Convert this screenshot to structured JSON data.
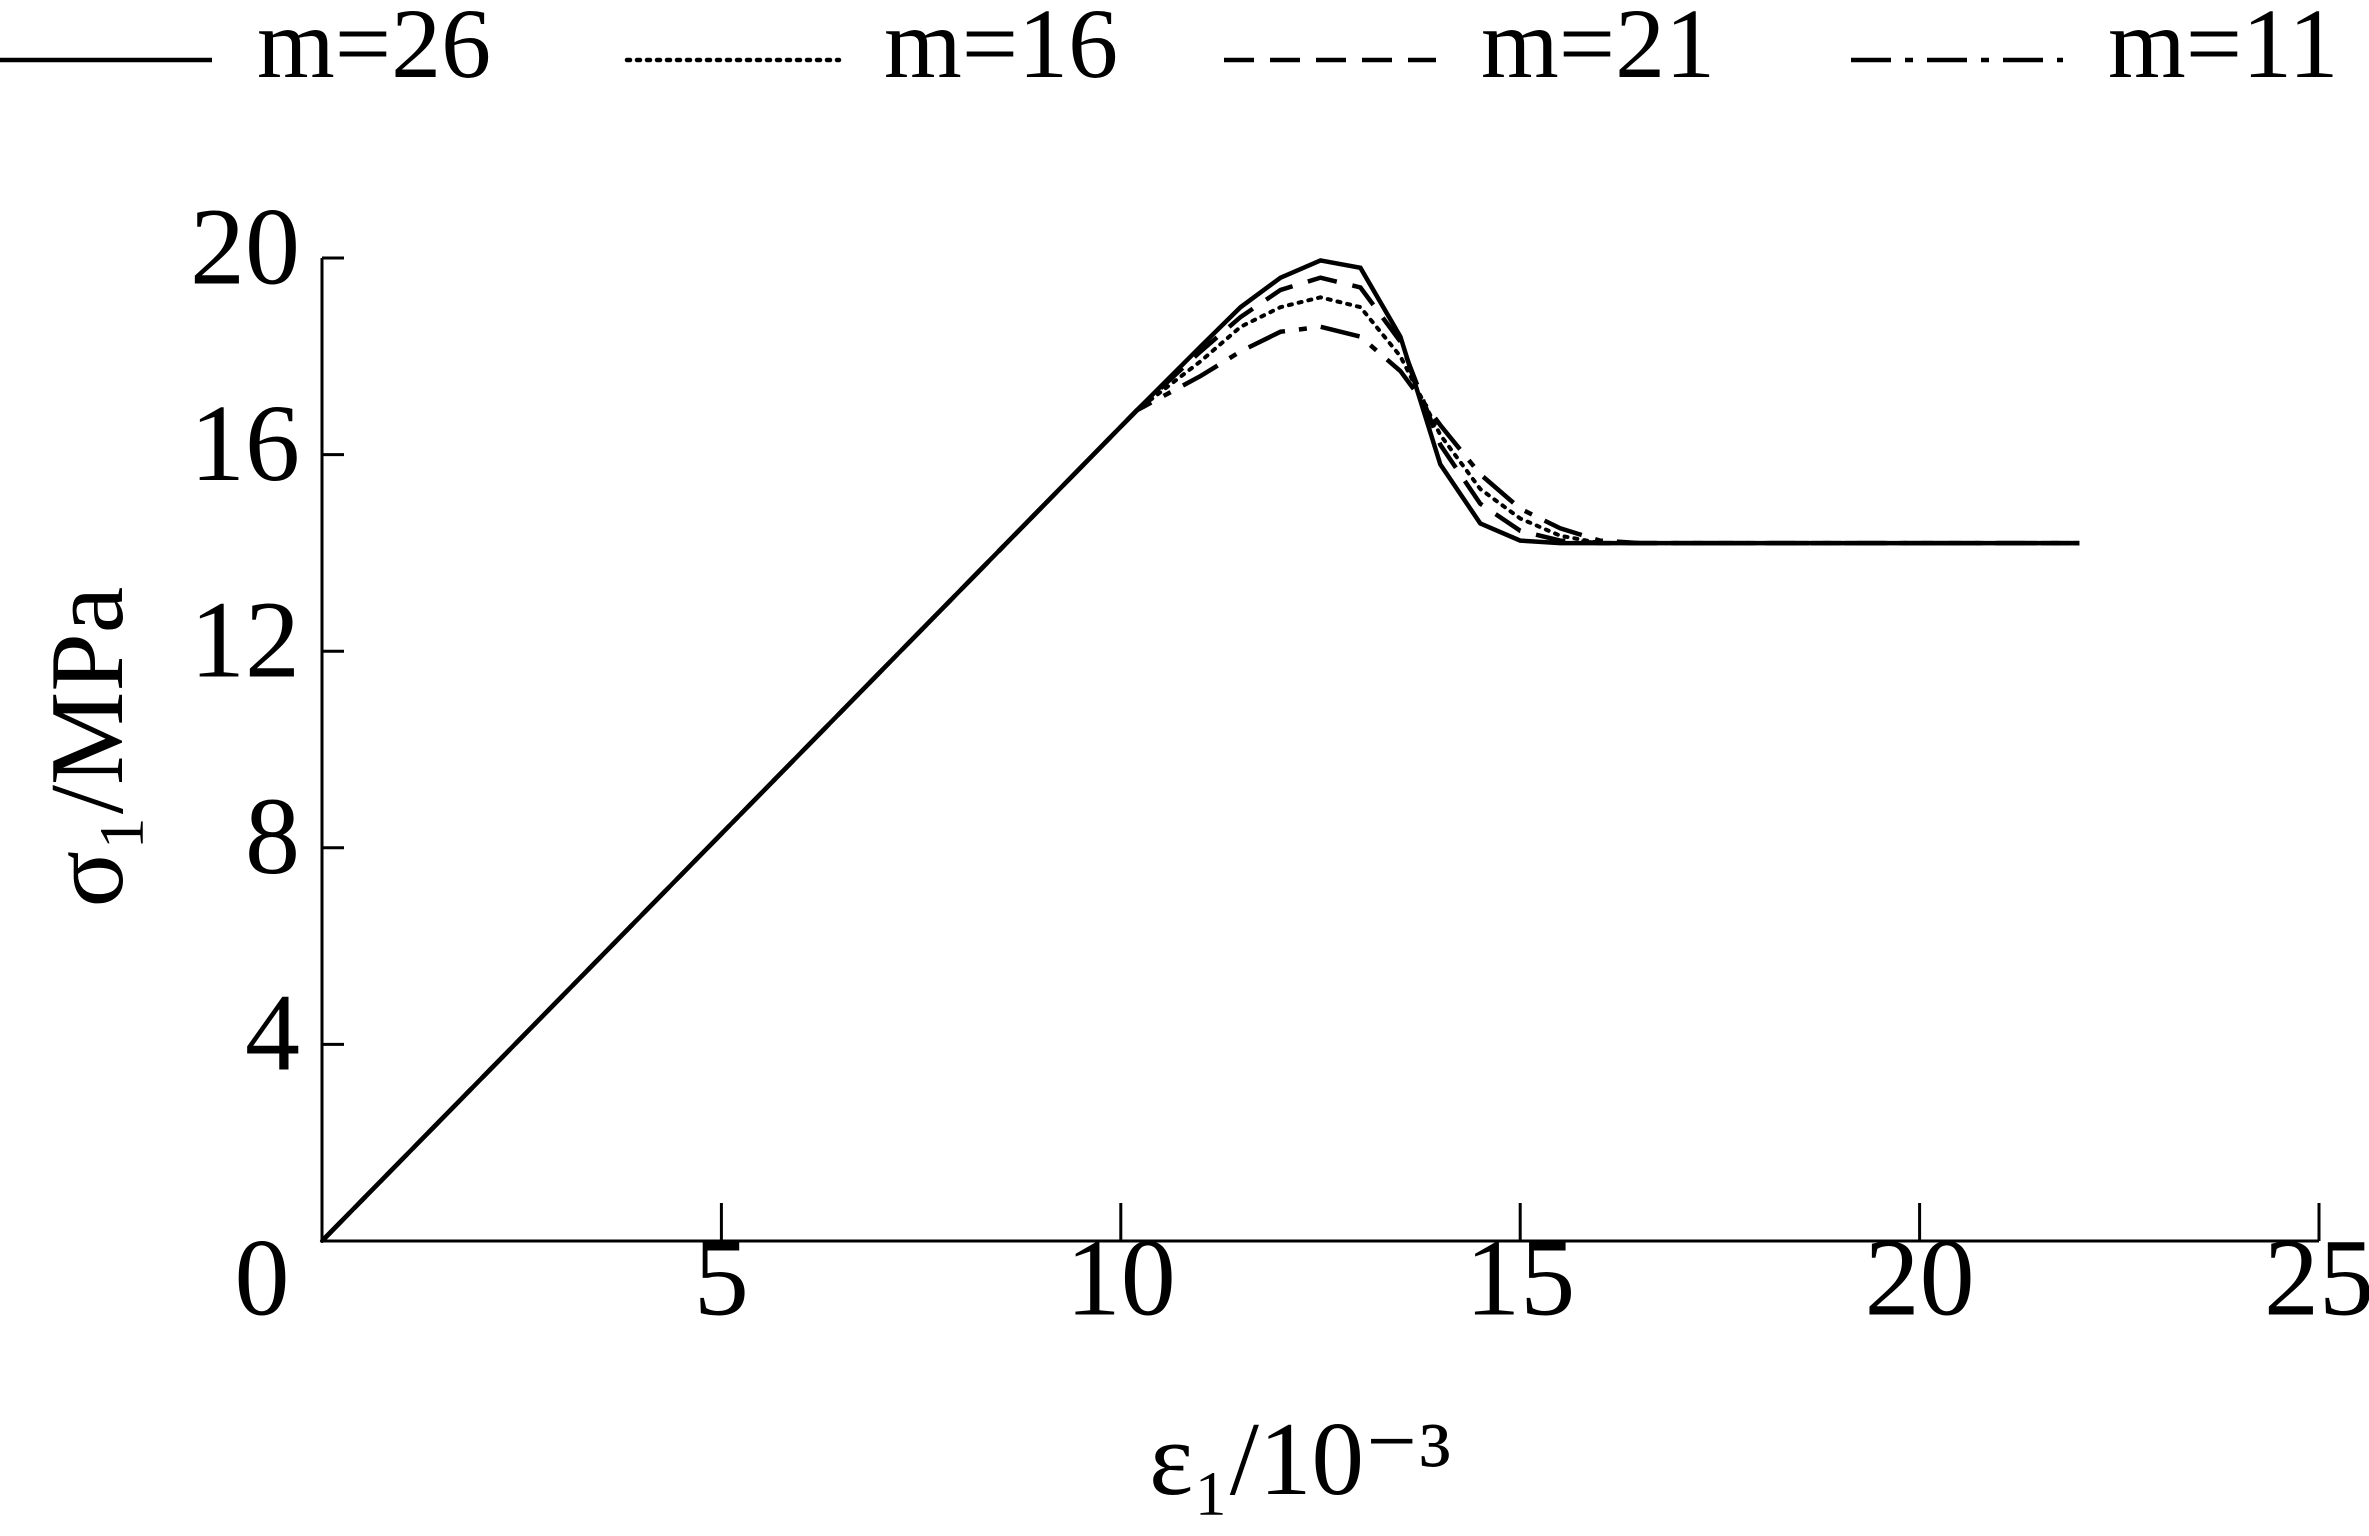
{
  "chart_data": {
    "type": "line",
    "x_label": "ε₁/10⁻³",
    "y_label": "σ₁/MPa",
    "x": [
      0,
      10.2,
      11,
      11.5,
      12,
      12.5,
      13,
      13.5,
      14,
      14.5,
      15,
      15.5,
      16,
      16.5,
      22
    ],
    "series": [
      {
        "name": "m=26",
        "color": "#000000",
        "dash": "solid",
        "values": [
          0,
          16.9,
          18.2,
          19.0,
          19.6,
          19.95,
          19.8,
          18.4,
          15.8,
          14.6,
          14.25,
          14.2,
          14.2,
          14.2,
          14.2
        ]
      },
      {
        "name": "m=16",
        "color": "#000000",
        "dash": "dotted",
        "values": [
          0,
          16.9,
          17.9,
          18.6,
          19.0,
          19.2,
          19.0,
          18.0,
          16.4,
          15.3,
          14.7,
          14.35,
          14.2,
          14.2,
          14.2
        ]
      },
      {
        "name": "m=21",
        "color": "#000000",
        "dash": "dashed",
        "values": [
          0,
          16.9,
          18.1,
          18.8,
          19.35,
          19.6,
          19.4,
          18.3,
          16.2,
          15.0,
          14.45,
          14.25,
          14.2,
          14.2,
          14.2
        ]
      },
      {
        "name": "m=11",
        "color": "#000000",
        "dash": "dashdot",
        "values": [
          0,
          16.9,
          17.6,
          18.1,
          18.5,
          18.6,
          18.4,
          17.7,
          16.6,
          15.6,
          14.9,
          14.5,
          14.25,
          14.2,
          14.2
        ]
      }
    ],
    "xlim": [
      0,
      25
    ],
    "xticks": [
      0,
      5,
      10,
      15,
      20,
      25
    ],
    "ylim": [
      0,
      20
    ],
    "yticks": [
      4,
      8,
      12,
      16,
      20
    ],
    "grid": false,
    "legend": "top"
  }
}
